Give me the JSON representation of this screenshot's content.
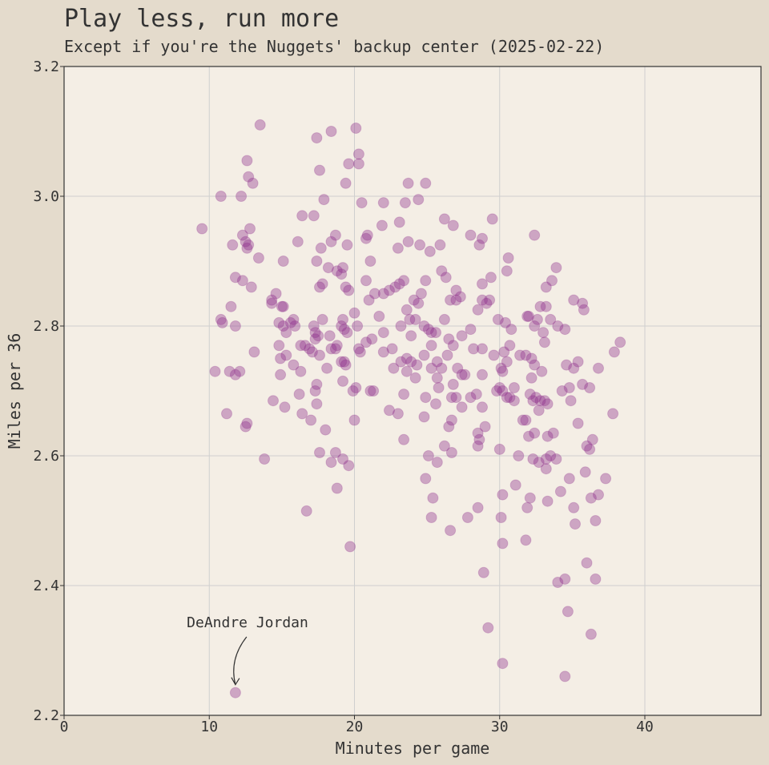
{
  "chart_data": {
    "type": "scatter",
    "title": "Play less, run more",
    "subtitle": "Except if you're the Nuggets' backup center (2025-02-22)",
    "xlabel": "Minutes per game",
    "ylabel": "Miles per 36",
    "xlim": [
      0,
      48
    ],
    "ylim": [
      2.2,
      3.2
    ],
    "xticks": [
      "0",
      "10",
      "20",
      "30",
      "40"
    ],
    "yticks": [
      "2.2",
      "2.4",
      "2.6",
      "2.8",
      "3.0",
      "3.2"
    ],
    "grid": true,
    "point_color": "#8e2f8c",
    "annotation": {
      "text": "DeAndre Jordan",
      "x": 11.8,
      "y": 2.235
    },
    "points": [
      [
        9.5,
        2.95
      ],
      [
        10.8,
        3.0
      ],
      [
        12.2,
        3.0
      ],
      [
        12.6,
        3.055
      ],
      [
        12.7,
        3.03
      ],
      [
        13.0,
        3.02
      ],
      [
        13.5,
        3.11
      ],
      [
        12.3,
        2.94
      ],
      [
        12.5,
        2.93
      ],
      [
        12.8,
        2.95
      ],
      [
        11.6,
        2.925
      ],
      [
        12.6,
        2.92
      ],
      [
        12.7,
        2.925
      ],
      [
        13.4,
        2.905
      ],
      [
        11.8,
        2.875
      ],
      [
        12.3,
        2.87
      ],
      [
        12.9,
        2.86
      ],
      [
        11.5,
        2.83
      ],
      [
        10.8,
        2.81
      ],
      [
        10.9,
        2.805
      ],
      [
        11.8,
        2.8
      ],
      [
        13.1,
        2.76
      ],
      [
        12.1,
        2.73
      ],
      [
        11.4,
        2.73
      ],
      [
        11.8,
        2.725
      ],
      [
        10.4,
        2.73
      ],
      [
        11.2,
        2.665
      ],
      [
        12.5,
        2.645
      ],
      [
        12.6,
        2.65
      ],
      [
        13.8,
        2.595
      ],
      [
        14.3,
        2.84
      ],
      [
        14.6,
        2.85
      ],
      [
        14.3,
        2.835
      ],
      [
        15.0,
        2.83
      ],
      [
        15.1,
        2.83
      ],
      [
        14.8,
        2.805
      ],
      [
        15.1,
        2.8
      ],
      [
        15.6,
        2.805
      ],
      [
        15.8,
        2.81
      ],
      [
        15.9,
        2.8
      ],
      [
        15.3,
        2.79
      ],
      [
        14.8,
        2.77
      ],
      [
        15.3,
        2.755
      ],
      [
        14.9,
        2.75
      ],
      [
        15.8,
        2.74
      ],
      [
        14.9,
        2.725
      ],
      [
        14.4,
        2.685
      ],
      [
        15.2,
        2.675
      ],
      [
        15.1,
        2.9
      ],
      [
        16.1,
        2.93
      ],
      [
        16.4,
        2.97
      ],
      [
        16.3,
        2.77
      ],
      [
        16.6,
        2.77
      ],
      [
        16.3,
        2.73
      ],
      [
        16.2,
        2.695
      ],
      [
        16.4,
        2.665
      ],
      [
        16.7,
        2.515
      ],
      [
        17.2,
        2.97
      ],
      [
        17.4,
        3.09
      ],
      [
        17.6,
        3.04
      ],
      [
        17.9,
        2.995
      ],
      [
        17.4,
        2.9
      ],
      [
        17.7,
        2.92
      ],
      [
        17.6,
        2.86
      ],
      [
        17.8,
        2.865
      ],
      [
        17.2,
        2.8
      ],
      [
        17.3,
        2.79
      ],
      [
        17.5,
        2.785
      ],
      [
        17.3,
        2.78
      ],
      [
        17.8,
        2.81
      ],
      [
        16.9,
        2.765
      ],
      [
        17.1,
        2.76
      ],
      [
        17.6,
        2.755
      ],
      [
        17.4,
        2.71
      ],
      [
        17.3,
        2.7
      ],
      [
        17.4,
        2.68
      ],
      [
        17.0,
        2.655
      ],
      [
        17.6,
        2.605
      ],
      [
        18.0,
        2.64
      ],
      [
        18.1,
        2.735
      ],
      [
        18.4,
        3.1
      ],
      [
        18.7,
        2.94
      ],
      [
        18.4,
        2.93
      ],
      [
        18.2,
        2.89
      ],
      [
        18.8,
        2.885
      ],
      [
        19.2,
        2.89
      ],
      [
        19.1,
        2.88
      ],
      [
        18.3,
        2.785
      ],
      [
        18.4,
        2.765
      ],
      [
        18.8,
        2.77
      ],
      [
        18.7,
        2.765
      ],
      [
        19.1,
        2.8
      ],
      [
        19.2,
        2.81
      ],
      [
        19.3,
        2.795
      ],
      [
        19.5,
        2.79
      ],
      [
        19.1,
        2.745
      ],
      [
        19.4,
        2.74
      ],
      [
        19.3,
        2.745
      ],
      [
        19.2,
        2.715
      ],
      [
        18.4,
        2.59
      ],
      [
        18.7,
        2.605
      ],
      [
        19.2,
        2.595
      ],
      [
        19.6,
        2.585
      ],
      [
        18.8,
        2.55
      ],
      [
        19.6,
        3.05
      ],
      [
        19.4,
        3.02
      ],
      [
        19.5,
        2.925
      ],
      [
        19.4,
        2.86
      ],
      [
        19.6,
        2.855
      ],
      [
        20.1,
        3.105
      ],
      [
        20.3,
        3.065
      ],
      [
        20.3,
        3.05
      ],
      [
        20.5,
        2.99
      ],
      [
        20.8,
        2.935
      ],
      [
        20.9,
        2.94
      ],
      [
        21.1,
        2.9
      ],
      [
        20.8,
        2.87
      ],
      [
        21.0,
        2.84
      ],
      [
        21.4,
        2.85
      ],
      [
        20.0,
        2.82
      ],
      [
        20.2,
        2.8
      ],
      [
        20.3,
        2.765
      ],
      [
        20.4,
        2.76
      ],
      [
        20.8,
        2.775
      ],
      [
        21.2,
        2.78
      ],
      [
        19.9,
        2.7
      ],
      [
        20.1,
        2.705
      ],
      [
        21.1,
        2.7
      ],
      [
        21.3,
        2.7
      ],
      [
        20.0,
        2.655
      ],
      [
        19.7,
        2.46
      ],
      [
        22.0,
        2.99
      ],
      [
        21.9,
        2.955
      ],
      [
        23.0,
        2.92
      ],
      [
        23.1,
        2.96
      ],
      [
        23.5,
        2.99
      ],
      [
        23.7,
        3.02
      ],
      [
        24.4,
        2.995
      ],
      [
        24.9,
        3.02
      ],
      [
        23.7,
        2.93
      ],
      [
        24.5,
        2.925
      ],
      [
        25.2,
        2.915
      ],
      [
        22.0,
        2.85
      ],
      [
        22.4,
        2.855
      ],
      [
        22.8,
        2.86
      ],
      [
        23.1,
        2.865
      ],
      [
        23.4,
        2.87
      ],
      [
        24.1,
        2.84
      ],
      [
        24.4,
        2.835
      ],
      [
        24.6,
        2.85
      ],
      [
        24.9,
        2.87
      ],
      [
        23.8,
        2.81
      ],
      [
        24.2,
        2.81
      ],
      [
        23.6,
        2.825
      ],
      [
        21.7,
        2.815
      ],
      [
        22.0,
        2.79
      ],
      [
        23.2,
        2.8
      ],
      [
        24.8,
        2.8
      ],
      [
        23.9,
        2.785
      ],
      [
        25.1,
        2.795
      ],
      [
        25.3,
        2.79
      ],
      [
        25.6,
        2.79
      ],
      [
        22.0,
        2.76
      ],
      [
        22.6,
        2.765
      ],
      [
        23.6,
        2.75
      ],
      [
        23.9,
        2.745
      ],
      [
        24.3,
        2.74
      ],
      [
        24.8,
        2.755
      ],
      [
        25.3,
        2.77
      ],
      [
        25.7,
        2.745
      ],
      [
        22.7,
        2.735
      ],
      [
        23.2,
        2.745
      ],
      [
        23.6,
        2.73
      ],
      [
        24.2,
        2.72
      ],
      [
        25.3,
        2.735
      ],
      [
        25.7,
        2.72
      ],
      [
        25.8,
        2.705
      ],
      [
        24.9,
        2.69
      ],
      [
        23.4,
        2.695
      ],
      [
        25.6,
        2.68
      ],
      [
        22.4,
        2.67
      ],
      [
        23.0,
        2.665
      ],
      [
        24.8,
        2.66
      ],
      [
        23.4,
        2.625
      ],
      [
        25.1,
        2.6
      ],
      [
        25.7,
        2.59
      ],
      [
        24.9,
        2.565
      ],
      [
        25.4,
        2.535
      ],
      [
        25.3,
        2.505
      ],
      [
        25.9,
        2.925
      ],
      [
        26.2,
        2.965
      ],
      [
        26.8,
        2.955
      ],
      [
        26.0,
        2.885
      ],
      [
        26.3,
        2.875
      ],
      [
        26.2,
        2.81
      ],
      [
        26.6,
        2.84
      ],
      [
        27.0,
        2.855
      ],
      [
        27.3,
        2.845
      ],
      [
        27.0,
        2.84
      ],
      [
        27.4,
        2.785
      ],
      [
        26.5,
        2.78
      ],
      [
        26.8,
        2.77
      ],
      [
        26.4,
        2.755
      ],
      [
        26.0,
        2.735
      ],
      [
        27.1,
        2.735
      ],
      [
        27.4,
        2.725
      ],
      [
        27.6,
        2.725
      ],
      [
        26.8,
        2.71
      ],
      [
        26.7,
        2.69
      ],
      [
        27.0,
        2.69
      ],
      [
        27.4,
        2.675
      ],
      [
        26.7,
        2.655
      ],
      [
        26.5,
        2.645
      ],
      [
        26.2,
        2.615
      ],
      [
        26.7,
        2.605
      ],
      [
        26.6,
        2.485
      ],
      [
        27.8,
        2.505
      ],
      [
        28.0,
        2.94
      ],
      [
        28.8,
        2.935
      ],
      [
        28.6,
        2.925
      ],
      [
        29.5,
        2.965
      ],
      [
        29.4,
        2.875
      ],
      [
        28.8,
        2.865
      ],
      [
        28.8,
        2.84
      ],
      [
        29.1,
        2.835
      ],
      [
        29.3,
        2.84
      ],
      [
        28.5,
        2.825
      ],
      [
        28.0,
        2.795
      ],
      [
        28.2,
        2.765
      ],
      [
        28.8,
        2.765
      ],
      [
        28.0,
        2.69
      ],
      [
        28.4,
        2.695
      ],
      [
        28.8,
        2.725
      ],
      [
        28.8,
        2.675
      ],
      [
        28.5,
        2.635
      ],
      [
        28.6,
        2.625
      ],
      [
        29.0,
        2.645
      ],
      [
        28.5,
        2.615
      ],
      [
        28.5,
        2.52
      ],
      [
        29.2,
        2.335
      ],
      [
        28.9,
        2.42
      ],
      [
        29.6,
        2.755
      ],
      [
        29.9,
        2.81
      ],
      [
        30.4,
        2.805
      ],
      [
        30.8,
        2.795
      ],
      [
        30.1,
        2.735
      ],
      [
        30.5,
        2.745
      ],
      [
        30.7,
        2.77
      ],
      [
        30.3,
        2.76
      ],
      [
        30.2,
        2.73
      ],
      [
        29.8,
        2.7
      ],
      [
        30.0,
        2.705
      ],
      [
        30.2,
        2.7
      ],
      [
        30.5,
        2.69
      ],
      [
        30.7,
        2.69
      ],
      [
        31.0,
        2.705
      ],
      [
        31.0,
        2.685
      ],
      [
        30.6,
        2.905
      ],
      [
        30.5,
        2.885
      ],
      [
        30.0,
        2.61
      ],
      [
        30.2,
        2.54
      ],
      [
        30.1,
        2.505
      ],
      [
        30.2,
        2.465
      ],
      [
        30.2,
        2.28
      ],
      [
        31.1,
        2.555
      ],
      [
        31.4,
        2.755
      ],
      [
        31.8,
        2.755
      ],
      [
        31.9,
        2.815
      ],
      [
        32.0,
        2.815
      ],
      [
        32.2,
        2.75
      ],
      [
        32.4,
        2.74
      ],
      [
        32.2,
        2.72
      ],
      [
        32.1,
        2.695
      ],
      [
        32.3,
        2.685
      ],
      [
        32.5,
        2.69
      ],
      [
        32.8,
        2.685
      ],
      [
        32.7,
        2.67
      ],
      [
        33.1,
        2.685
      ],
      [
        33.3,
        2.68
      ],
      [
        31.6,
        2.655
      ],
      [
        31.8,
        2.655
      ],
      [
        32.0,
        2.63
      ],
      [
        32.4,
        2.635
      ],
      [
        32.9,
        2.73
      ],
      [
        32.4,
        2.94
      ],
      [
        32.4,
        2.8
      ],
      [
        32.6,
        2.81
      ],
      [
        33.0,
        2.79
      ],
      [
        32.8,
        2.83
      ],
      [
        33.2,
        2.83
      ],
      [
        33.6,
        2.87
      ],
      [
        33.2,
        2.86
      ],
      [
        33.1,
        2.775
      ],
      [
        33.5,
        2.81
      ],
      [
        34.0,
        2.8
      ],
      [
        34.5,
        2.795
      ],
      [
        33.9,
        2.89
      ],
      [
        31.3,
        2.6
      ],
      [
        32.3,
        2.595
      ],
      [
        32.7,
        2.59
      ],
      [
        33.2,
        2.595
      ],
      [
        33.5,
        2.6
      ],
      [
        33.9,
        2.595
      ],
      [
        33.2,
        2.58
      ],
      [
        33.3,
        2.63
      ],
      [
        33.7,
        2.635
      ],
      [
        32.1,
        2.535
      ],
      [
        31.9,
        2.52
      ],
      [
        33.3,
        2.53
      ],
      [
        31.8,
        2.47
      ],
      [
        34.3,
        2.7
      ],
      [
        34.6,
        2.74
      ],
      [
        34.8,
        2.705
      ],
      [
        35.1,
        2.735
      ],
      [
        35.4,
        2.745
      ],
      [
        35.7,
        2.71
      ],
      [
        35.8,
        2.825
      ],
      [
        35.7,
        2.835
      ],
      [
        35.1,
        2.84
      ],
      [
        34.9,
        2.685
      ],
      [
        35.4,
        2.65
      ],
      [
        36.2,
        2.705
      ],
      [
        36.0,
        2.615
      ],
      [
        36.2,
        2.61
      ],
      [
        36.4,
        2.625
      ],
      [
        36.8,
        2.735
      ],
      [
        36.8,
        2.54
      ],
      [
        36.3,
        2.535
      ],
      [
        37.3,
        2.565
      ],
      [
        34.8,
        2.565
      ],
      [
        35.9,
        2.575
      ],
      [
        35.1,
        2.52
      ],
      [
        35.2,
        2.495
      ],
      [
        36.6,
        2.5
      ],
      [
        34.2,
        2.545
      ],
      [
        36.0,
        2.435
      ],
      [
        36.6,
        2.41
      ],
      [
        34.0,
        2.405
      ],
      [
        34.5,
        2.41
      ],
      [
        34.7,
        2.36
      ],
      [
        36.3,
        2.325
      ],
      [
        34.5,
        2.26
      ],
      [
        37.8,
        2.665
      ],
      [
        37.9,
        2.76
      ],
      [
        38.3,
        2.775
      ],
      [
        11.8,
        2.235
      ]
    ]
  }
}
